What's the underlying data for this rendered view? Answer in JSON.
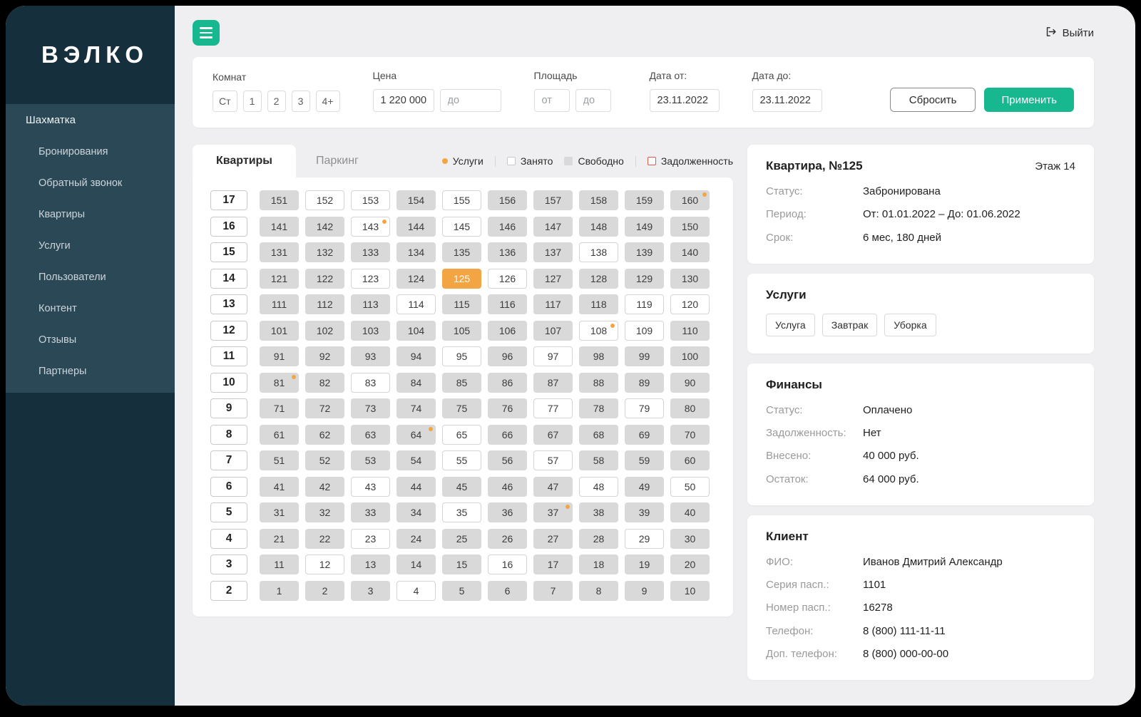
{
  "colors": {
    "accent_green": "#17b890",
    "accent_orange": "#f2a542",
    "occupied_gray": "#d9d9d9",
    "debt_red": "#e0584a",
    "sidebar_dark": "#152f3d"
  },
  "sidebar": {
    "logo": "ВЭЛКО",
    "root_item": "Шахматка",
    "items": [
      "Бронирования",
      "Обратный звонок",
      "Квартиры",
      "Услуги",
      "Пользователи",
      "Контент",
      "Отзывы",
      "Партнеры"
    ]
  },
  "topbar": {
    "logout": "Выйти"
  },
  "filters": {
    "rooms": {
      "label": "Комнат",
      "options": [
        "Ст",
        "1",
        "2",
        "3",
        "4+"
      ]
    },
    "price": {
      "label": "Цена",
      "from_value": "1 220 000",
      "to_placeholder": "до"
    },
    "area": {
      "label": "Площадь",
      "from_placeholder": "от",
      "to_placeholder": "до"
    },
    "date_from": {
      "label": "Дата от:",
      "value": "23.11.2022"
    },
    "date_to": {
      "label": "Дата до:",
      "value": "23.11.2022"
    },
    "reset_label": "Сбросить",
    "apply_label": "Применить"
  },
  "board": {
    "tabs": [
      {
        "label": "Квартиры",
        "active": true
      },
      {
        "label": "Паркинг",
        "active": false
      }
    ],
    "legend": [
      {
        "label": "Услуги",
        "marker": "marker-dot",
        "divider_before": false
      },
      {
        "label": "Занято",
        "marker": "marker-outline",
        "divider_before": true
      },
      {
        "label": "Свободно",
        "marker": "marker-filled",
        "divider_before": false
      },
      {
        "label": "Задолженность",
        "marker": "marker-red",
        "divider_before": true
      }
    ],
    "rows": [
      {
        "floor": "17",
        "cells": [
          {
            "num": "151",
            "state": "occ"
          },
          {
            "num": "152",
            "state": "free"
          },
          {
            "num": "153",
            "state": "free"
          },
          {
            "num": "154",
            "state": "occ"
          },
          {
            "num": "155",
            "state": "free"
          },
          {
            "num": "156",
            "state": "occ"
          },
          {
            "num": "157",
            "state": "occ"
          },
          {
            "num": "158",
            "state": "occ"
          },
          {
            "num": "159",
            "state": "occ"
          },
          {
            "num": "160",
            "state": "occ",
            "service": true
          }
        ]
      },
      {
        "floor": "16",
        "cells": [
          {
            "num": "141",
            "state": "occ"
          },
          {
            "num": "142",
            "state": "occ"
          },
          {
            "num": "143",
            "state": "free",
            "service": true
          },
          {
            "num": "144",
            "state": "occ"
          },
          {
            "num": "145",
            "state": "free"
          },
          {
            "num": "146",
            "state": "occ"
          },
          {
            "num": "147",
            "state": "occ"
          },
          {
            "num": "148",
            "state": "occ"
          },
          {
            "num": "149",
            "state": "occ"
          },
          {
            "num": "150",
            "state": "occ"
          }
        ]
      },
      {
        "floor": "15",
        "cells": [
          {
            "num": "131",
            "state": "occ"
          },
          {
            "num": "132",
            "state": "occ"
          },
          {
            "num": "133",
            "state": "occ"
          },
          {
            "num": "134",
            "state": "occ"
          },
          {
            "num": "135",
            "state": "occ"
          },
          {
            "num": "136",
            "state": "occ"
          },
          {
            "num": "137",
            "state": "occ"
          },
          {
            "num": "138",
            "state": "free"
          },
          {
            "num": "139",
            "state": "occ"
          },
          {
            "num": "140",
            "state": "occ"
          }
        ]
      },
      {
        "floor": "14",
        "cells": [
          {
            "num": "121",
            "state": "occ"
          },
          {
            "num": "122",
            "state": "occ"
          },
          {
            "num": "123",
            "state": "free"
          },
          {
            "num": "124",
            "state": "occ"
          },
          {
            "num": "125",
            "state": "sel"
          },
          {
            "num": "126",
            "state": "free"
          },
          {
            "num": "127",
            "state": "occ"
          },
          {
            "num": "128",
            "state": "occ"
          },
          {
            "num": "129",
            "state": "occ"
          },
          {
            "num": "130",
            "state": "occ"
          }
        ]
      },
      {
        "floor": "13",
        "cells": [
          {
            "num": "111",
            "state": "occ"
          },
          {
            "num": "112",
            "state": "occ"
          },
          {
            "num": "113",
            "state": "occ"
          },
          {
            "num": "114",
            "state": "free"
          },
          {
            "num": "115",
            "state": "occ"
          },
          {
            "num": "116",
            "state": "occ"
          },
          {
            "num": "117",
            "state": "occ"
          },
          {
            "num": "118",
            "state": "occ"
          },
          {
            "num": "119",
            "state": "free"
          },
          {
            "num": "120",
            "state": "free"
          }
        ]
      },
      {
        "floor": "12",
        "cells": [
          {
            "num": "101",
            "state": "occ"
          },
          {
            "num": "102",
            "state": "occ"
          },
          {
            "num": "103",
            "state": "occ"
          },
          {
            "num": "104",
            "state": "occ"
          },
          {
            "num": "105",
            "state": "occ"
          },
          {
            "num": "106",
            "state": "occ"
          },
          {
            "num": "107",
            "state": "occ"
          },
          {
            "num": "108",
            "state": "free",
            "service": true
          },
          {
            "num": "109",
            "state": "free"
          },
          {
            "num": "110",
            "state": "occ"
          }
        ]
      },
      {
        "floor": "11",
        "cells": [
          {
            "num": "91",
            "state": "occ"
          },
          {
            "num": "92",
            "state": "occ"
          },
          {
            "num": "93",
            "state": "occ"
          },
          {
            "num": "94",
            "state": "occ"
          },
          {
            "num": "95",
            "state": "free"
          },
          {
            "num": "96",
            "state": "occ"
          },
          {
            "num": "97",
            "state": "free"
          },
          {
            "num": "98",
            "state": "occ"
          },
          {
            "num": "99",
            "state": "occ"
          },
          {
            "num": "100",
            "state": "occ"
          }
        ]
      },
      {
        "floor": "10",
        "cells": [
          {
            "num": "81",
            "state": "occ",
            "service": true
          },
          {
            "num": "82",
            "state": "occ"
          },
          {
            "num": "83",
            "state": "free"
          },
          {
            "num": "84",
            "state": "occ"
          },
          {
            "num": "85",
            "state": "occ"
          },
          {
            "num": "86",
            "state": "occ"
          },
          {
            "num": "87",
            "state": "occ"
          },
          {
            "num": "88",
            "state": "occ"
          },
          {
            "num": "89",
            "state": "occ"
          },
          {
            "num": "90",
            "state": "occ"
          }
        ]
      },
      {
        "floor": "9",
        "cells": [
          {
            "num": "71",
            "state": "occ"
          },
          {
            "num": "72",
            "state": "occ"
          },
          {
            "num": "73",
            "state": "occ"
          },
          {
            "num": "74",
            "state": "occ"
          },
          {
            "num": "75",
            "state": "occ"
          },
          {
            "num": "76",
            "state": "occ"
          },
          {
            "num": "77",
            "state": "free"
          },
          {
            "num": "78",
            "state": "occ"
          },
          {
            "num": "79",
            "state": "free"
          },
          {
            "num": "80",
            "state": "occ"
          }
        ]
      },
      {
        "floor": "8",
        "cells": [
          {
            "num": "61",
            "state": "occ"
          },
          {
            "num": "62",
            "state": "occ"
          },
          {
            "num": "63",
            "state": "occ"
          },
          {
            "num": "64",
            "state": "occ",
            "service": true
          },
          {
            "num": "65",
            "state": "free"
          },
          {
            "num": "66",
            "state": "occ"
          },
          {
            "num": "67",
            "state": "occ"
          },
          {
            "num": "68",
            "state": "occ"
          },
          {
            "num": "69",
            "state": "occ"
          },
          {
            "num": "70",
            "state": "occ"
          }
        ]
      },
      {
        "floor": "7",
        "cells": [
          {
            "num": "51",
            "state": "occ"
          },
          {
            "num": "52",
            "state": "occ"
          },
          {
            "num": "53",
            "state": "occ"
          },
          {
            "num": "54",
            "state": "occ"
          },
          {
            "num": "55",
            "state": "free"
          },
          {
            "num": "56",
            "state": "occ"
          },
          {
            "num": "57",
            "state": "free"
          },
          {
            "num": "58",
            "state": "occ"
          },
          {
            "num": "59",
            "state": "occ"
          },
          {
            "num": "60",
            "state": "occ"
          }
        ]
      },
      {
        "floor": "6",
        "cells": [
          {
            "num": "41",
            "state": "occ"
          },
          {
            "num": "42",
            "state": "occ"
          },
          {
            "num": "43",
            "state": "free"
          },
          {
            "num": "44",
            "state": "occ"
          },
          {
            "num": "45",
            "state": "occ"
          },
          {
            "num": "46",
            "state": "occ"
          },
          {
            "num": "47",
            "state": "occ"
          },
          {
            "num": "48",
            "state": "free"
          },
          {
            "num": "49",
            "state": "occ"
          },
          {
            "num": "50",
            "state": "free"
          }
        ]
      },
      {
        "floor": "5",
        "cells": [
          {
            "num": "31",
            "state": "occ"
          },
          {
            "num": "32",
            "state": "occ"
          },
          {
            "num": "33",
            "state": "occ"
          },
          {
            "num": "34",
            "state": "occ"
          },
          {
            "num": "35",
            "state": "free"
          },
          {
            "num": "36",
            "state": "occ"
          },
          {
            "num": "37",
            "state": "occ",
            "service": true
          },
          {
            "num": "38",
            "state": "occ"
          },
          {
            "num": "39",
            "state": "occ"
          },
          {
            "num": "40",
            "state": "occ"
          }
        ]
      },
      {
        "floor": "4",
        "cells": [
          {
            "num": "21",
            "state": "occ"
          },
          {
            "num": "22",
            "state": "occ"
          },
          {
            "num": "23",
            "state": "free"
          },
          {
            "num": "24",
            "state": "occ"
          },
          {
            "num": "25",
            "state": "occ"
          },
          {
            "num": "26",
            "state": "occ"
          },
          {
            "num": "27",
            "state": "occ"
          },
          {
            "num": "28",
            "state": "occ"
          },
          {
            "num": "29",
            "state": "free"
          },
          {
            "num": "30",
            "state": "occ"
          }
        ]
      },
      {
        "floor": "3",
        "cells": [
          {
            "num": "11",
            "state": "occ"
          },
          {
            "num": "12",
            "state": "free"
          },
          {
            "num": "13",
            "state": "occ"
          },
          {
            "num": "14",
            "state": "occ"
          },
          {
            "num": "15",
            "state": "occ"
          },
          {
            "num": "16",
            "state": "free"
          },
          {
            "num": "17",
            "state": "occ"
          },
          {
            "num": "18",
            "state": "occ"
          },
          {
            "num": "19",
            "state": "occ"
          },
          {
            "num": "20",
            "state": "occ"
          }
        ]
      },
      {
        "floor": "2",
        "cells": [
          {
            "num": "1",
            "state": "occ"
          },
          {
            "num": "2",
            "state": "occ"
          },
          {
            "num": "3",
            "state": "occ"
          },
          {
            "num": "4",
            "state": "free"
          },
          {
            "num": "5",
            "state": "occ"
          },
          {
            "num": "6",
            "state": "occ"
          },
          {
            "num": "7",
            "state": "occ"
          },
          {
            "num": "8",
            "state": "occ"
          },
          {
            "num": "9",
            "state": "occ"
          },
          {
            "num": "10",
            "state": "occ"
          }
        ]
      }
    ]
  },
  "panel": {
    "apartment": {
      "title": "Квартира, №125",
      "floor": "Этаж 14",
      "rows": [
        {
          "label": "Статус:",
          "value": "Забронирована"
        },
        {
          "label": "Период:",
          "value": "От: 01.01.2022 – До: 01.06.2022"
        },
        {
          "label": "Срок:",
          "value": "6 мес, 180 дней"
        }
      ]
    },
    "services": {
      "title": "Услуги",
      "chips": [
        "Услуга",
        "Завтрак",
        "Уборка"
      ]
    },
    "finance": {
      "title": "Финансы",
      "rows": [
        {
          "label": "Статус:",
          "value": "Оплачено"
        },
        {
          "label": "Задолженность:",
          "value": "Нет"
        },
        {
          "label": "Внесено:",
          "value": "40 000 руб."
        },
        {
          "label": "Остаток:",
          "value": "64 000 руб."
        }
      ]
    },
    "client": {
      "title": "Клиент",
      "rows": [
        {
          "label": "ФИО:",
          "value": "Иванов Дмитрий Александр"
        },
        {
          "label": "Серия пасп.:",
          "value": "1101"
        },
        {
          "label": "Номер пасп.:",
          "value": "16278"
        },
        {
          "label": "Телефон:",
          "value": "8 (800) 111-11-11"
        },
        {
          "label": "Доп. телефон:",
          "value": "8 (800) 000-00-00"
        }
      ]
    }
  }
}
